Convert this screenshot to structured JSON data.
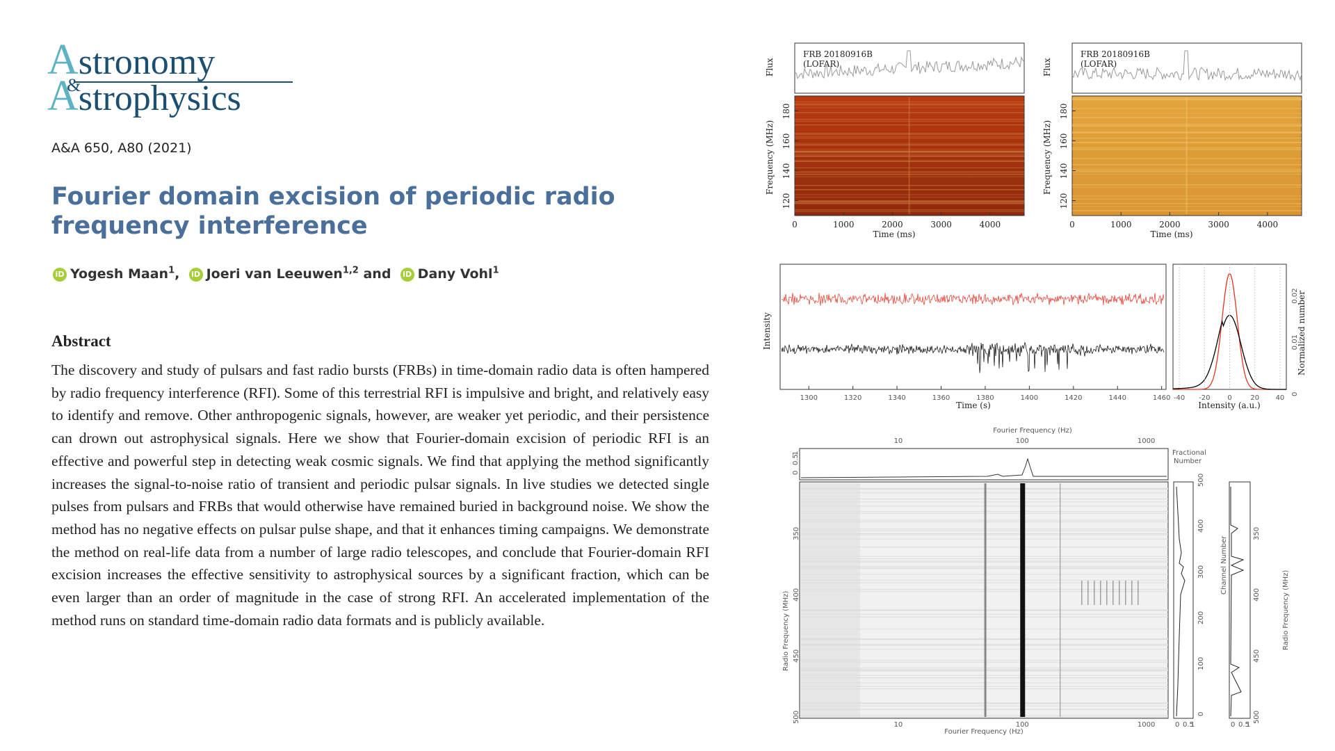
{
  "journal": {
    "logo_line1_cap": "A",
    "logo_line1_rest": "stronomy",
    "logo_amp": "&",
    "logo_line2_cap": "A",
    "logo_line2_rest": "strophysics"
  },
  "citation": "A&A 650, A80 (2021)",
  "title": "Fourier domain excision of periodic radio frequency interference",
  "authors": [
    {
      "name": "Yogesh Maan",
      "aff": "1",
      "sep": ","
    },
    {
      "name": "Joeri van Leeuwen",
      "aff": "1,2",
      "sep": " and"
    },
    {
      "name": "Dany Vohl",
      "aff": "1",
      "sep": ""
    }
  ],
  "orcid_label": "iD",
  "abstract": {
    "heading": "Abstract",
    "text": "The discovery and study of pulsars and fast radio bursts (FRBs) in time-domain radio data is often hampered by radio frequency interference (RFI). Some of this terrestrial RFI is impulsive and bright, and relatively easy to identify and remove. Other anthropogenic signals, however, are weaker yet periodic, and their persistence can drown out astrophysical signals. Here we show that Fourier-domain excision of periodic RFI is an effective and powerful step in detecting weak cosmic signals. We find that applying the method significantly increases the signal-to-noise ratio of transient and periodic pulsar signals. In live studies we detected single pulses from pulsars and FRBs that would otherwise have remained buried in background noise. We show the method has no negative effects on pulsar pulse shape, and that it enhances timing campaigns. We demonstrate the method on real-life data from a number of large radio telescopes, and conclude that Fourier-domain RFI excision increases the effective sensitivity to astrophysical sources by a significant fraction, which can be even larger than an order of magnitude in the case of strong RFI. An accelerated implementation of the method runs on standard time-domain radio data formats and is publicly available."
  },
  "chart_data": [
    {
      "type": "heatmap",
      "panel": "top-left",
      "label": "FRB 20180916B",
      "label2": "(LOFAR)",
      "flux_label": "Flux",
      "ylabel": "Frequency (MHz)",
      "xlabel": "Time (ms)",
      "xticks": [
        0,
        1000,
        2000,
        3000,
        4000
      ],
      "yticks": [
        120,
        140,
        160,
        180
      ],
      "xlim": [
        0,
        4700
      ],
      "ylim": [
        110,
        190
      ],
      "colormap": "dark-red",
      "burst_time_ms": 2330
    },
    {
      "type": "heatmap",
      "panel": "top-right",
      "label": "FRB 20180916B",
      "label2": "(LOFAR)",
      "flux_label": "Flux",
      "ylabel": "Frequency (MHz)",
      "xlabel": "Time (ms)",
      "xticks": [
        0,
        1000,
        2000,
        3000,
        4000
      ],
      "yticks": [
        120,
        140,
        160,
        180
      ],
      "xlim": [
        0,
        4700
      ],
      "ylim": [
        110,
        190
      ],
      "colormap": "yellow-orange",
      "burst_time_ms": 2330
    },
    {
      "type": "line",
      "panel": "middle-left",
      "xlabel": "Time (s)",
      "ylabel": "Intensity",
      "xticks": [
        1300,
        1320,
        1340,
        1360,
        1380,
        1400,
        1420,
        1440,
        1460
      ],
      "xlim": [
        1287,
        1462
      ],
      "series": [
        {
          "color": "#e53222",
          "offset": 0.72,
          "noise": 0.07
        },
        {
          "color": "#000000",
          "offset": 0.32,
          "noise": 0.06
        }
      ]
    },
    {
      "type": "line",
      "panel": "middle-right",
      "xlabel": "Intensity (a.u.)",
      "ylabel": "Normalized number",
      "xticks": [
        -40,
        -20,
        0,
        20,
        40
      ],
      "yticks": [
        0,
        0.01,
        0.02
      ],
      "xlim": [
        -45,
        45
      ],
      "ylim": [
        0,
        0.027
      ],
      "series": [
        {
          "color": "#e53222",
          "peak": 0.025,
          "center": 0,
          "width": 6
        },
        {
          "color": "#000000",
          "peak": 0.016,
          "center": 0,
          "width": 9
        }
      ]
    },
    {
      "type": "heatmap",
      "panel": "bottom",
      "top_xlabel": "Fourier Frequency (Hz)",
      "xlabel": "Fourier Frequency (Hz)",
      "xticks": [
        10,
        100,
        1000
      ],
      "top_yticks": [
        0,
        0.5,
        1
      ],
      "top_right_label1": "Fractional",
      "top_right_label2": "Number",
      "ylabel": "Radio Frequency (MHz)",
      "yticks": [
        350,
        400,
        450,
        500
      ],
      "channel_label": "Channel Number",
      "channel_ticks": [
        0,
        100,
        200,
        300,
        400,
        500
      ],
      "right_ylabel": "Radio Frequency (MHz)",
      "right_yticks": [
        350,
        400,
        450,
        500
      ],
      "side_xticks": [
        0,
        0.5,
        1
      ],
      "colormap": "greyscale",
      "strong_line_hz": 100
    }
  ]
}
